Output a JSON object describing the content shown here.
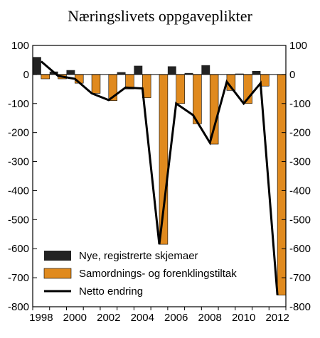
{
  "chart_data": {
    "type": "bar",
    "title": "Næringslivets oppgaveplikter",
    "x": [
      1998,
      1999,
      2000,
      2001,
      2002,
      2003,
      2004,
      2005,
      2006,
      2007,
      2008,
      2009,
      2010,
      2011,
      2012
    ],
    "x_tick_labels": [
      "1998",
      "2000",
      "2002",
      "2004",
      "2006",
      "2008",
      "2010",
      "2012"
    ],
    "y_tick_labels": [
      "100",
      "0",
      "-100",
      "-200",
      "-300",
      "-400",
      "-500",
      "-600",
      "-700",
      "-800"
    ],
    "ylim": [
      -800,
      100
    ],
    "series": [
      {
        "name": "Nye, registrerte skjemaer",
        "kind": "bar",
        "color": "#222222",
        "values": [
          60,
          10,
          15,
          0,
          0,
          8,
          30,
          0,
          28,
          5,
          32,
          0,
          3,
          12,
          0
        ]
      },
      {
        "name": "Samordnings- og forenklingstiltak",
        "kind": "bar",
        "color": "#e08a1e",
        "values": [
          -15,
          -15,
          -30,
          -65,
          -90,
          -50,
          -80,
          -585,
          -100,
          -170,
          -240,
          -55,
          -100,
          -40,
          -760
        ]
      },
      {
        "name": "Netto endring",
        "kind": "line",
        "color": "#000000",
        "values": [
          45,
          -5,
          -15,
          -65,
          -88,
          -45,
          -48,
          -585,
          -100,
          -140,
          -235,
          -25,
          -100,
          -30,
          -760
        ]
      }
    ],
    "legend_position": "bottom-left",
    "grid": false,
    "secondary_y_axis_mirrored": true
  }
}
